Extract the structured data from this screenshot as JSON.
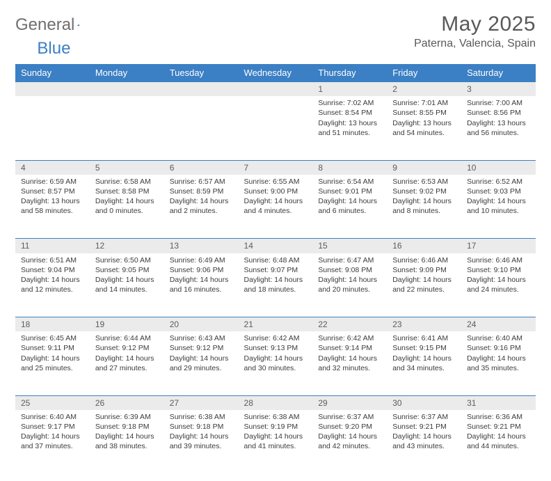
{
  "brand": {
    "general": "General",
    "blue": "Blue"
  },
  "title": "May 2025",
  "subtitle": "Paterna, Valencia, Spain",
  "colors": {
    "header_bg": "#3b7fc4",
    "header_text": "#ffffff",
    "daynum_bg": "#ebebeb",
    "row_border": "#3b7fc4",
    "body_text": "#3b3b3b",
    "title_text": "#595959"
  },
  "day_headers": [
    "Sunday",
    "Monday",
    "Tuesday",
    "Wednesday",
    "Thursday",
    "Friday",
    "Saturday"
  ],
  "weeks": [
    [
      null,
      null,
      null,
      null,
      {
        "n": "1",
        "sunrise": "7:02 AM",
        "sunset": "8:54 PM",
        "dl_h": "13",
        "dl_m": "51"
      },
      {
        "n": "2",
        "sunrise": "7:01 AM",
        "sunset": "8:55 PM",
        "dl_h": "13",
        "dl_m": "54"
      },
      {
        "n": "3",
        "sunrise": "7:00 AM",
        "sunset": "8:56 PM",
        "dl_h": "13",
        "dl_m": "56"
      }
    ],
    [
      {
        "n": "4",
        "sunrise": "6:59 AM",
        "sunset": "8:57 PM",
        "dl_h": "13",
        "dl_m": "58"
      },
      {
        "n": "5",
        "sunrise": "6:58 AM",
        "sunset": "8:58 PM",
        "dl_h": "14",
        "dl_m": "0"
      },
      {
        "n": "6",
        "sunrise": "6:57 AM",
        "sunset": "8:59 PM",
        "dl_h": "14",
        "dl_m": "2"
      },
      {
        "n": "7",
        "sunrise": "6:55 AM",
        "sunset": "9:00 PM",
        "dl_h": "14",
        "dl_m": "4"
      },
      {
        "n": "8",
        "sunrise": "6:54 AM",
        "sunset": "9:01 PM",
        "dl_h": "14",
        "dl_m": "6"
      },
      {
        "n": "9",
        "sunrise": "6:53 AM",
        "sunset": "9:02 PM",
        "dl_h": "14",
        "dl_m": "8"
      },
      {
        "n": "10",
        "sunrise": "6:52 AM",
        "sunset": "9:03 PM",
        "dl_h": "14",
        "dl_m": "10"
      }
    ],
    [
      {
        "n": "11",
        "sunrise": "6:51 AM",
        "sunset": "9:04 PM",
        "dl_h": "14",
        "dl_m": "12"
      },
      {
        "n": "12",
        "sunrise": "6:50 AM",
        "sunset": "9:05 PM",
        "dl_h": "14",
        "dl_m": "14"
      },
      {
        "n": "13",
        "sunrise": "6:49 AM",
        "sunset": "9:06 PM",
        "dl_h": "14",
        "dl_m": "16"
      },
      {
        "n": "14",
        "sunrise": "6:48 AM",
        "sunset": "9:07 PM",
        "dl_h": "14",
        "dl_m": "18"
      },
      {
        "n": "15",
        "sunrise": "6:47 AM",
        "sunset": "9:08 PM",
        "dl_h": "14",
        "dl_m": "20"
      },
      {
        "n": "16",
        "sunrise": "6:46 AM",
        "sunset": "9:09 PM",
        "dl_h": "14",
        "dl_m": "22"
      },
      {
        "n": "17",
        "sunrise": "6:46 AM",
        "sunset": "9:10 PM",
        "dl_h": "14",
        "dl_m": "24"
      }
    ],
    [
      {
        "n": "18",
        "sunrise": "6:45 AM",
        "sunset": "9:11 PM",
        "dl_h": "14",
        "dl_m": "25"
      },
      {
        "n": "19",
        "sunrise": "6:44 AM",
        "sunset": "9:12 PM",
        "dl_h": "14",
        "dl_m": "27"
      },
      {
        "n": "20",
        "sunrise": "6:43 AM",
        "sunset": "9:12 PM",
        "dl_h": "14",
        "dl_m": "29"
      },
      {
        "n": "21",
        "sunrise": "6:42 AM",
        "sunset": "9:13 PM",
        "dl_h": "14",
        "dl_m": "30"
      },
      {
        "n": "22",
        "sunrise": "6:42 AM",
        "sunset": "9:14 PM",
        "dl_h": "14",
        "dl_m": "32"
      },
      {
        "n": "23",
        "sunrise": "6:41 AM",
        "sunset": "9:15 PM",
        "dl_h": "14",
        "dl_m": "34"
      },
      {
        "n": "24",
        "sunrise": "6:40 AM",
        "sunset": "9:16 PM",
        "dl_h": "14",
        "dl_m": "35"
      }
    ],
    [
      {
        "n": "25",
        "sunrise": "6:40 AM",
        "sunset": "9:17 PM",
        "dl_h": "14",
        "dl_m": "37"
      },
      {
        "n": "26",
        "sunrise": "6:39 AM",
        "sunset": "9:18 PM",
        "dl_h": "14",
        "dl_m": "38"
      },
      {
        "n": "27",
        "sunrise": "6:38 AM",
        "sunset": "9:18 PM",
        "dl_h": "14",
        "dl_m": "39"
      },
      {
        "n": "28",
        "sunrise": "6:38 AM",
        "sunset": "9:19 PM",
        "dl_h": "14",
        "dl_m": "41"
      },
      {
        "n": "29",
        "sunrise": "6:37 AM",
        "sunset": "9:20 PM",
        "dl_h": "14",
        "dl_m": "42"
      },
      {
        "n": "30",
        "sunrise": "6:37 AM",
        "sunset": "9:21 PM",
        "dl_h": "14",
        "dl_m": "43"
      },
      {
        "n": "31",
        "sunrise": "6:36 AM",
        "sunset": "9:21 PM",
        "dl_h": "14",
        "dl_m": "44"
      }
    ]
  ],
  "labels": {
    "sunrise": "Sunrise: ",
    "sunset": "Sunset: ",
    "daylight_prefix": "Daylight: ",
    "hours_word": " hours",
    "and_word": "and ",
    "minutes_word": " minutes."
  }
}
